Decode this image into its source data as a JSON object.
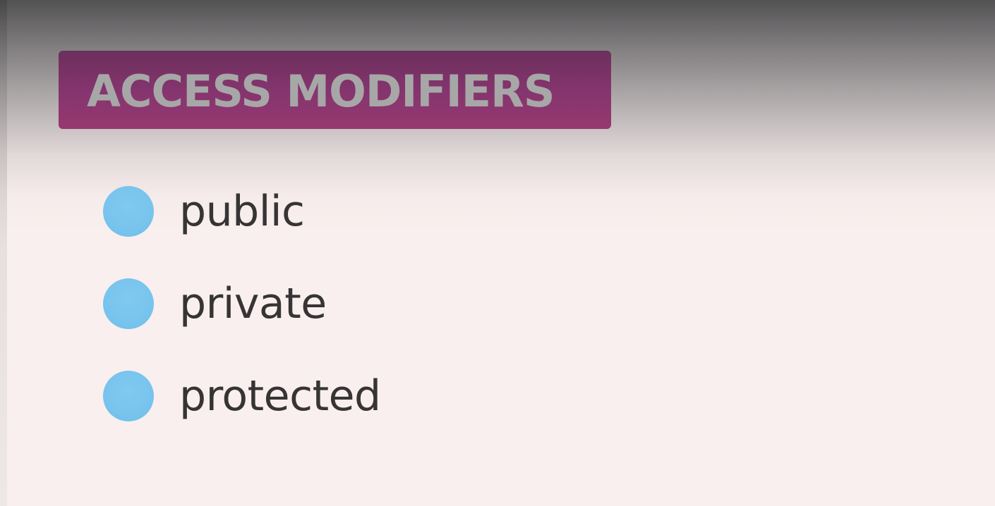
{
  "slide": {
    "title": "ACCESS MODIFIERS",
    "items": [
      {
        "label": "public"
      },
      {
        "label": "private"
      },
      {
        "label": "protected"
      }
    ]
  },
  "colors": {
    "title_banner": "#86356f",
    "title_text": "#a7a7a7",
    "bullet": "#77c4ee",
    "body_text": "#363434",
    "background": "#f9efee"
  },
  "icons": {
    "bullet": "bullet-dot-icon"
  }
}
